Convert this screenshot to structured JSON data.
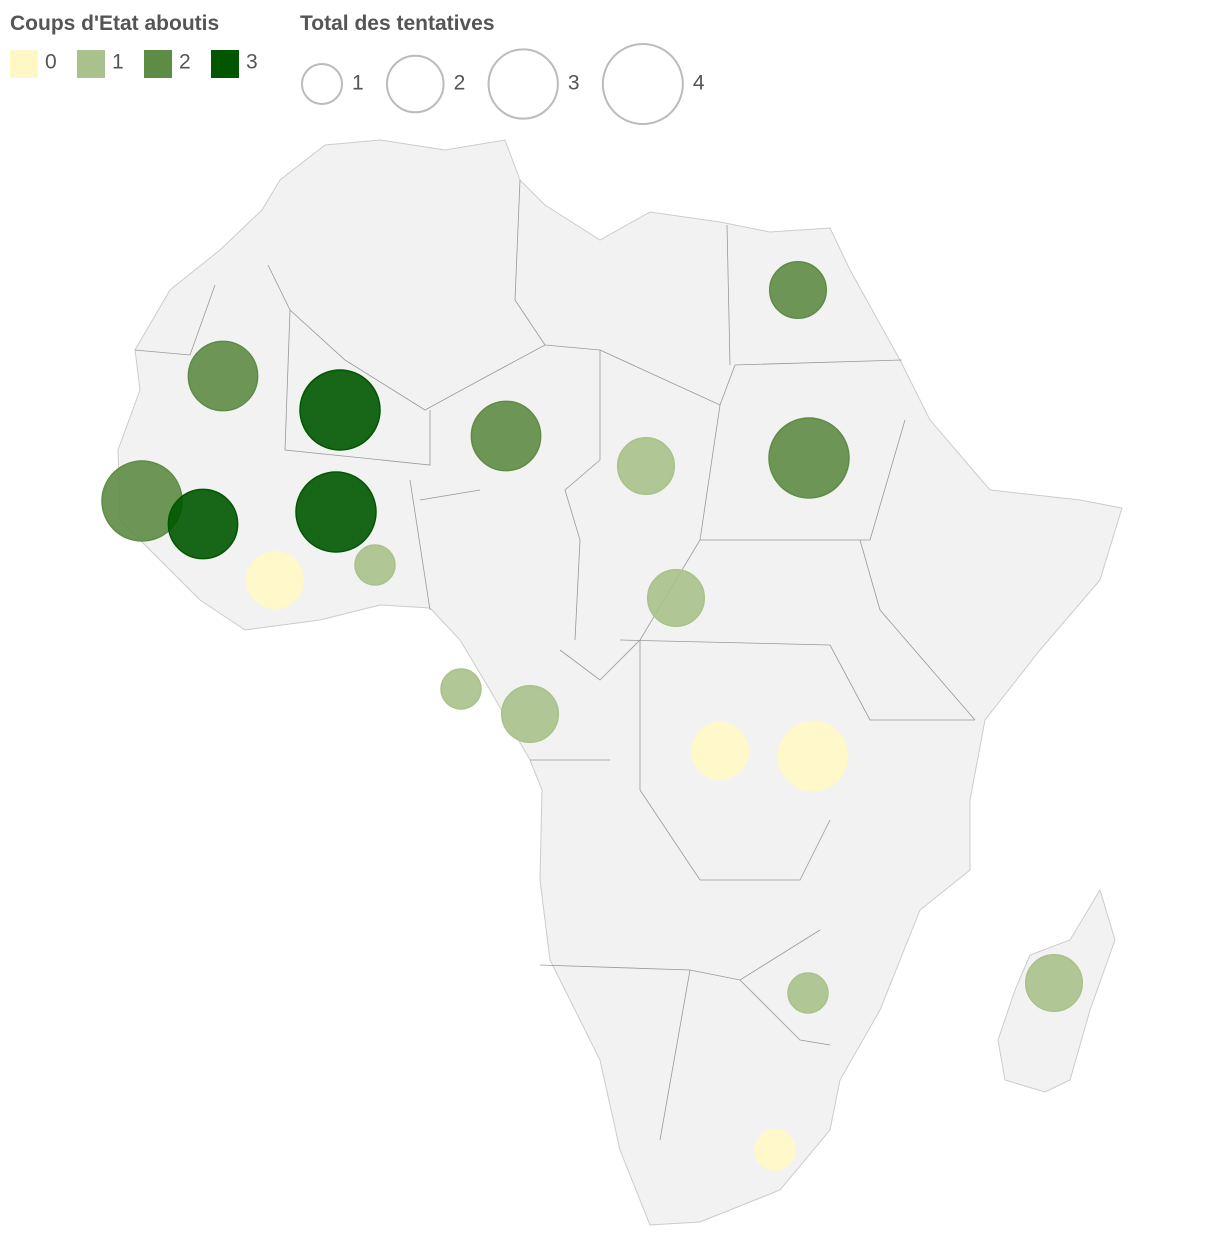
{
  "color_legend": {
    "title": "Coups d'Etat aboutis",
    "values": [
      0,
      1,
      2,
      3
    ],
    "colors": [
      "#fff8c6",
      "#a9c18a",
      "#5e8c45",
      "#005700"
    ]
  },
  "size_legend": {
    "title": "Total des tentatives",
    "values": [
      1,
      2,
      3,
      4
    ]
  },
  "bubbles": [
    {
      "successful": 2,
      "attempts": 2
    },
    {
      "successful": 2,
      "attempts": 3
    },
    {
      "successful": 3,
      "attempts": 4
    },
    {
      "successful": 2,
      "attempts": 3
    },
    {
      "successful": 1,
      "attempts": 2
    },
    {
      "successful": 2,
      "attempts": 4
    },
    {
      "successful": 2,
      "attempts": 4
    },
    {
      "successful": 3,
      "attempts": 3
    },
    {
      "successful": 3,
      "attempts": 4
    },
    {
      "successful": 1,
      "attempts": 1
    },
    {
      "successful": 0,
      "attempts": 2
    },
    {
      "successful": 1,
      "attempts": 2
    },
    {
      "successful": 1,
      "attempts": 1
    },
    {
      "successful": 1,
      "attempts": 2
    },
    {
      "successful": 0,
      "attempts": 2
    },
    {
      "successful": 0,
      "attempts": 3
    },
    {
      "successful": 1,
      "attempts": 1
    },
    {
      "successful": 1,
      "attempts": 2
    },
    {
      "successful": 0,
      "attempts": 1
    }
  ]
}
